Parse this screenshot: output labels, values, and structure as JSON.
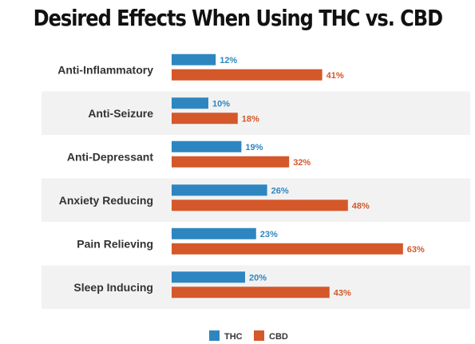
{
  "chart_data": {
    "type": "bar",
    "orientation": "horizontal",
    "title": "Desired Effects When Using THC vs. CBD",
    "categories": [
      "Anti-Inflammatory",
      "Anti-Seizure",
      "Anti-Depressant",
      "Anxiety Reducing",
      "Pain Relieving",
      "Sleep Inducing"
    ],
    "series": [
      {
        "name": "THC",
        "values": [
          12,
          10,
          19,
          26,
          23,
          20
        ],
        "labels": [
          "12%",
          "10%",
          "19%",
          "26%",
          "23%",
          "20%"
        ],
        "color": "#2E86C1"
      },
      {
        "name": "CBD",
        "values": [
          41,
          18,
          32,
          48,
          63,
          43
        ],
        "labels": [
          "41%",
          "18%",
          "32%",
          "48%",
          "63%",
          "43%"
        ],
        "color": "#D4582A"
      }
    ],
    "xlim": [
      0,
      70
    ],
    "legend": "bottom-center",
    "grid": false,
    "row_band_color": "#F2F2F2"
  }
}
